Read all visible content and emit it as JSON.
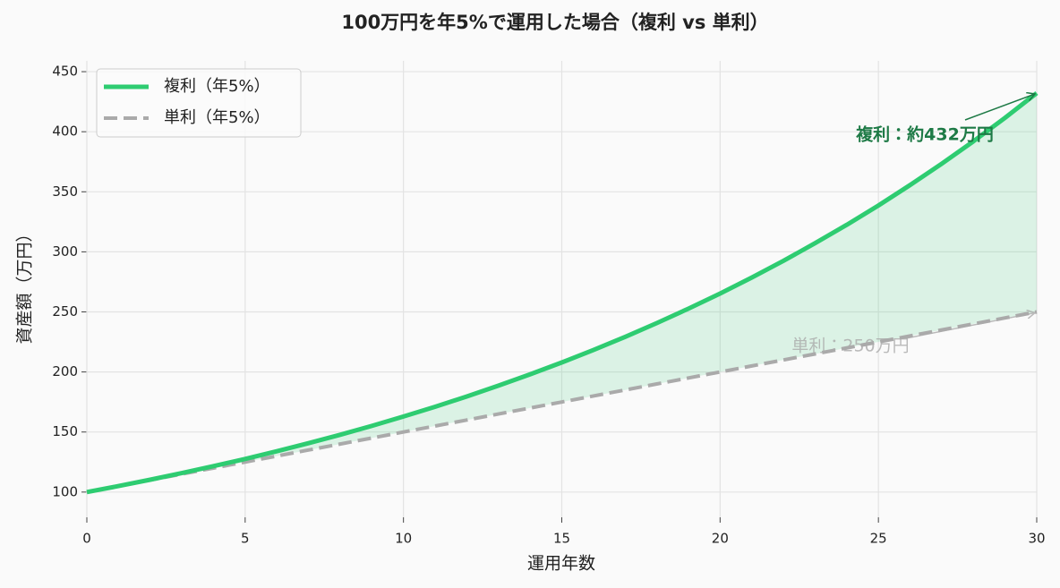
{
  "chart_data": {
    "type": "line",
    "title": "100万円を年5%で運用した場合（複利 vs 単利）",
    "xlabel": "運用年数",
    "ylabel": "資産額（万円）",
    "x": [
      0,
      1,
      2,
      3,
      4,
      5,
      6,
      7,
      8,
      9,
      10,
      11,
      12,
      13,
      14,
      15,
      16,
      17,
      18,
      19,
      20,
      21,
      22,
      23,
      24,
      25,
      26,
      27,
      28,
      29,
      30
    ],
    "series": [
      {
        "name": "複利（年5%）",
        "color": "#2ecc71",
        "dashed": false,
        "values": [
          100,
          105,
          110.3,
          115.8,
          121.6,
          127.6,
          134,
          140.7,
          147.7,
          155.1,
          162.9,
          171,
          179.6,
          188.6,
          198,
          207.9,
          218.3,
          229.2,
          240.7,
          252.7,
          265.3,
          278.6,
          292.5,
          307.2,
          322.5,
          338.6,
          355.6,
          373.4,
          392,
          411.6,
          432.2
        ]
      },
      {
        "name": "単利（年5%）",
        "color": "#aaaaaa",
        "dashed": true,
        "values": [
          100,
          105,
          110,
          115,
          120,
          125,
          130,
          135,
          140,
          145,
          150,
          155,
          160,
          165,
          170,
          175,
          180,
          185,
          190,
          195,
          200,
          205,
          210,
          215,
          220,
          225,
          230,
          235,
          240,
          245,
          250
        ]
      }
    ],
    "fill_between": true,
    "fill_color": "#2ecc71",
    "annotations": [
      {
        "text": "複利：約432万円",
        "series": 0,
        "color": "#1e7a46"
      },
      {
        "text": "単利：250万円",
        "series": 1,
        "color": "#aaaaaa"
      }
    ],
    "xlim": [
      0,
      30
    ],
    "xticks": [
      0,
      5,
      10,
      15,
      20,
      25,
      30
    ],
    "ylim": [
      79,
      459
    ],
    "yticks": [
      100,
      150,
      200,
      250,
      300,
      350,
      400,
      450
    ],
    "grid": true,
    "legend": "upper-left"
  }
}
